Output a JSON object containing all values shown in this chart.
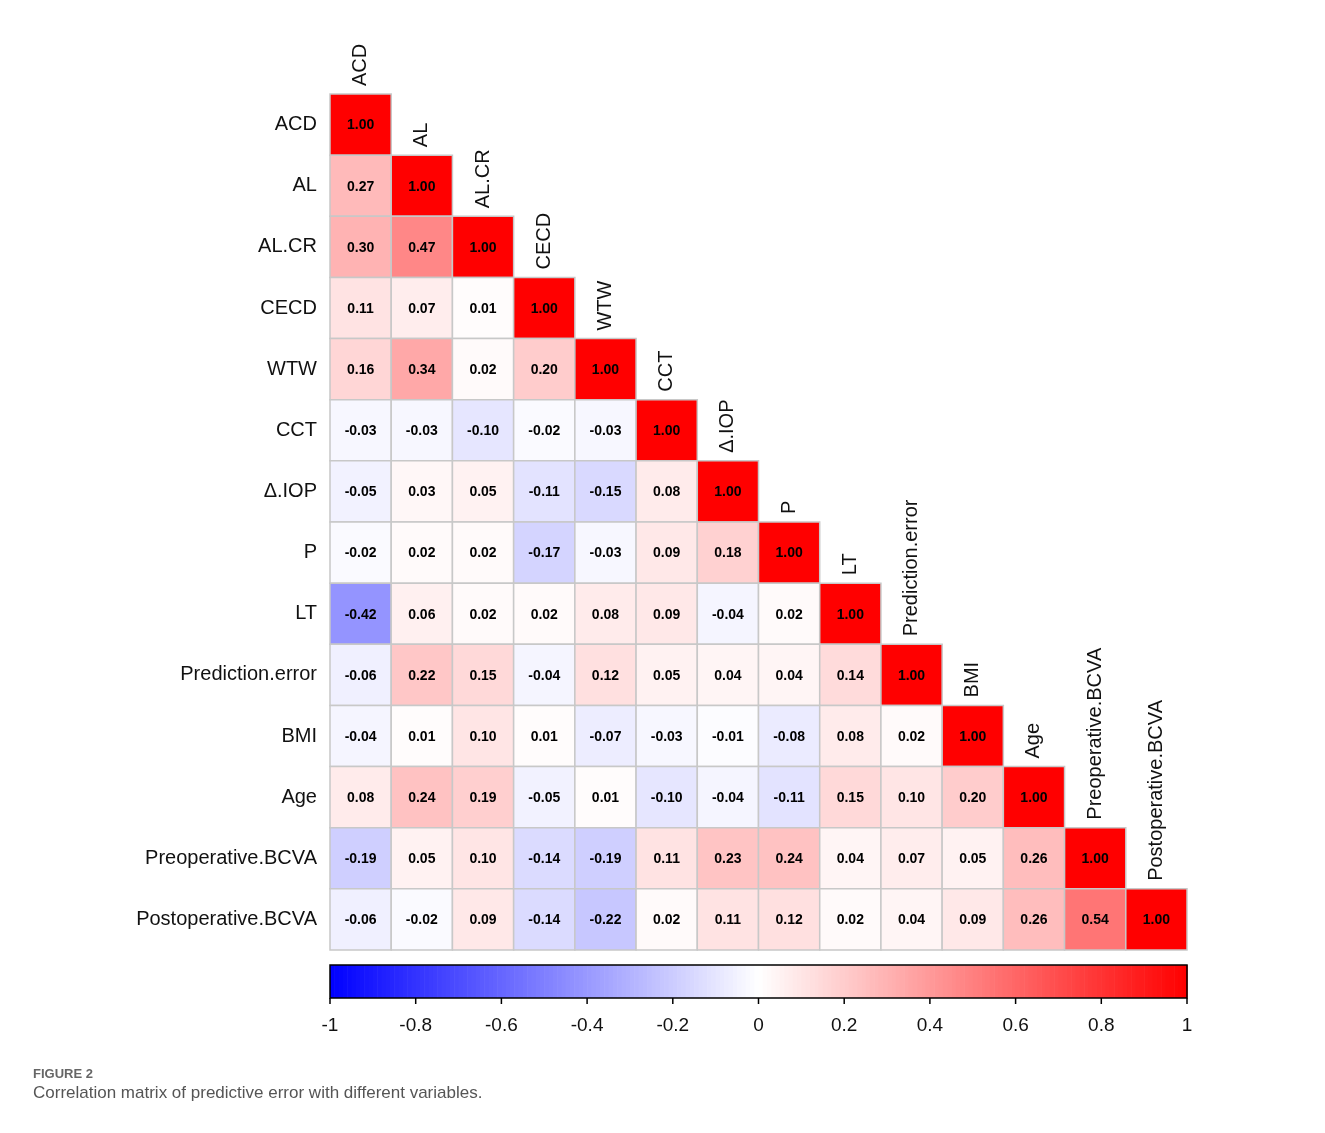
{
  "chart_data": {
    "type": "heatmap",
    "categories": [
      "ACD",
      "AL",
      "AL.CR",
      "CECD",
      "WTW",
      "CCT",
      "Δ.IOP",
      "P",
      "LT",
      "Prediction.error",
      "BMI",
      "Age",
      "Preoperative.BCVA",
      "Postoperative.BCVA"
    ],
    "y_categories": [
      "ACD",
      "AL",
      "AL.CR",
      "CECD",
      "WTW",
      "CCT",
      "Δ.IOP",
      "P",
      "LT",
      "Prediction.error",
      "BMI",
      "Age",
      "Preoperative.BCVA",
      "Postoperative.BCVA"
    ],
    "cells": [
      [
        1.0,
        null,
        null,
        null,
        null,
        null,
        null,
        null,
        null,
        null,
        null,
        null,
        null,
        null
      ],
      [
        0.27,
        1.0,
        null,
        null,
        null,
        null,
        null,
        null,
        null,
        null,
        null,
        null,
        null,
        null
      ],
      [
        0.3,
        0.47,
        1.0,
        null,
        null,
        null,
        null,
        null,
        null,
        null,
        null,
        null,
        null,
        null
      ],
      [
        0.11,
        0.07,
        0.01,
        1.0,
        null,
        null,
        null,
        null,
        null,
        null,
        null,
        null,
        null,
        null
      ],
      [
        0.16,
        0.34,
        0.02,
        0.2,
        1.0,
        null,
        null,
        null,
        null,
        null,
        null,
        null,
        null,
        null
      ],
      [
        -0.03,
        -0.03,
        -0.1,
        -0.02,
        -0.03,
        1.0,
        null,
        null,
        null,
        null,
        null,
        null,
        null,
        null
      ],
      [
        -0.05,
        0.03,
        0.05,
        -0.11,
        -0.15,
        0.08,
        1.0,
        null,
        null,
        null,
        null,
        null,
        null,
        null
      ],
      [
        -0.02,
        0.02,
        0.02,
        -0.17,
        -0.03,
        0.09,
        0.18,
        1.0,
        null,
        null,
        null,
        null,
        null,
        null
      ],
      [
        -0.42,
        0.06,
        0.02,
        0.02,
        0.08,
        0.09,
        -0.04,
        0.02,
        1.0,
        null,
        null,
        null,
        null,
        null
      ],
      [
        -0.06,
        0.22,
        0.15,
        -0.04,
        0.12,
        0.05,
        0.04,
        0.04,
        0.14,
        1.0,
        null,
        null,
        null,
        null
      ],
      [
        -0.04,
        0.01,
        0.1,
        0.01,
        -0.07,
        -0.03,
        -0.01,
        -0.08,
        0.08,
        0.02,
        1.0,
        null,
        null,
        null
      ],
      [
        0.08,
        0.24,
        0.19,
        -0.05,
        0.01,
        -0.1,
        -0.04,
        -0.11,
        0.15,
        0.1,
        0.2,
        1.0,
        null,
        null
      ],
      [
        -0.19,
        0.05,
        0.1,
        -0.14,
        -0.19,
        0.11,
        0.23,
        0.24,
        0.04,
        0.07,
        0.05,
        0.26,
        1.0,
        null
      ],
      [
        -0.06,
        -0.02,
        0.09,
        -0.14,
        -0.22,
        0.02,
        0.11,
        0.12,
        0.02,
        0.04,
        0.09,
        0.26,
        0.54,
        1.0
      ]
    ],
    "cell_labels": [
      [
        "1.00",
        null,
        null,
        null,
        null,
        null,
        null,
        null,
        null,
        null,
        null,
        null,
        null,
        null
      ],
      [
        "0.27",
        "1.00",
        null,
        null,
        null,
        null,
        null,
        null,
        null,
        null,
        null,
        null,
        null,
        null
      ],
      [
        "0.30",
        "0.47",
        "1.00",
        null,
        null,
        null,
        null,
        null,
        null,
        null,
        null,
        null,
        null,
        null
      ],
      [
        "0.11",
        "0.07",
        "0.01",
        "1.00",
        null,
        null,
        null,
        null,
        null,
        null,
        null,
        null,
        null,
        null
      ],
      [
        "0.16",
        "0.34",
        "0.02",
        "0.20",
        "1.00",
        null,
        null,
        null,
        null,
        null,
        null,
        null,
        null,
        null
      ],
      [
        "-0.03",
        "-0.03",
        "-0.10",
        "-0.02",
        "-0.03",
        "1.00",
        null,
        null,
        null,
        null,
        null,
        null,
        null,
        null
      ],
      [
        "-0.05",
        "0.03",
        "0.05",
        "-0.11",
        "-0.15",
        "0.08",
        "1.00",
        null,
        null,
        null,
        null,
        null,
        null,
        null
      ],
      [
        "-0.02",
        "0.02",
        "0.02",
        "-0.17",
        "-0.03",
        "0.09",
        "0.18",
        "1.00",
        null,
        null,
        null,
        null,
        null,
        null
      ],
      [
        "-0.42",
        "0.06",
        "0.02",
        "0.02",
        "0.08",
        "0.09",
        "-0.04",
        "0.02",
        "1.00",
        null,
        null,
        null,
        null,
        null
      ],
      [
        "-0.06",
        "0.22",
        "0.15",
        "-0.04",
        "0.12",
        "0.05",
        "0.04",
        "0.04",
        "0.14",
        "1.00",
        null,
        null,
        null,
        null
      ],
      [
        "-0.04",
        "0.01",
        "0.10",
        "0.01",
        "-0.07",
        "-0.03",
        "-0.01",
        "-0.08",
        "0.08",
        "0.02",
        "1.00",
        null,
        null,
        null
      ],
      [
        "0.08",
        "0.24",
        "0.19",
        "-0.05",
        "0.01",
        "-0.10",
        "-0.04",
        "-0.11",
        "0.15",
        "0.10",
        "0.20",
        "1.00",
        null,
        null
      ],
      [
        "-0.19",
        "0.05",
        "0.10",
        "-0.14",
        "-0.19",
        "0.11",
        "0.23",
        "0.24",
        "0.04",
        "0.07",
        "0.05",
        "0.26",
        "1.00",
        null
      ],
      [
        "-0.06",
        "-0.02",
        "0.09",
        "-0.14",
        "-0.22",
        "0.02",
        "0.11",
        "0.12",
        "0.02",
        "0.04",
        "0.09",
        "0.26",
        "0.54",
        "1.00"
      ]
    ],
    "clim": [
      -1,
      1
    ],
    "cticks": [
      -1,
      -0.8,
      -0.6,
      -0.4,
      -0.2,
      0,
      0.2,
      0.4,
      0.6,
      0.8,
      1
    ],
    "annotations": [
      "FIGURE 2",
      "Correlation matrix of predictive error with different variables."
    ]
  }
}
